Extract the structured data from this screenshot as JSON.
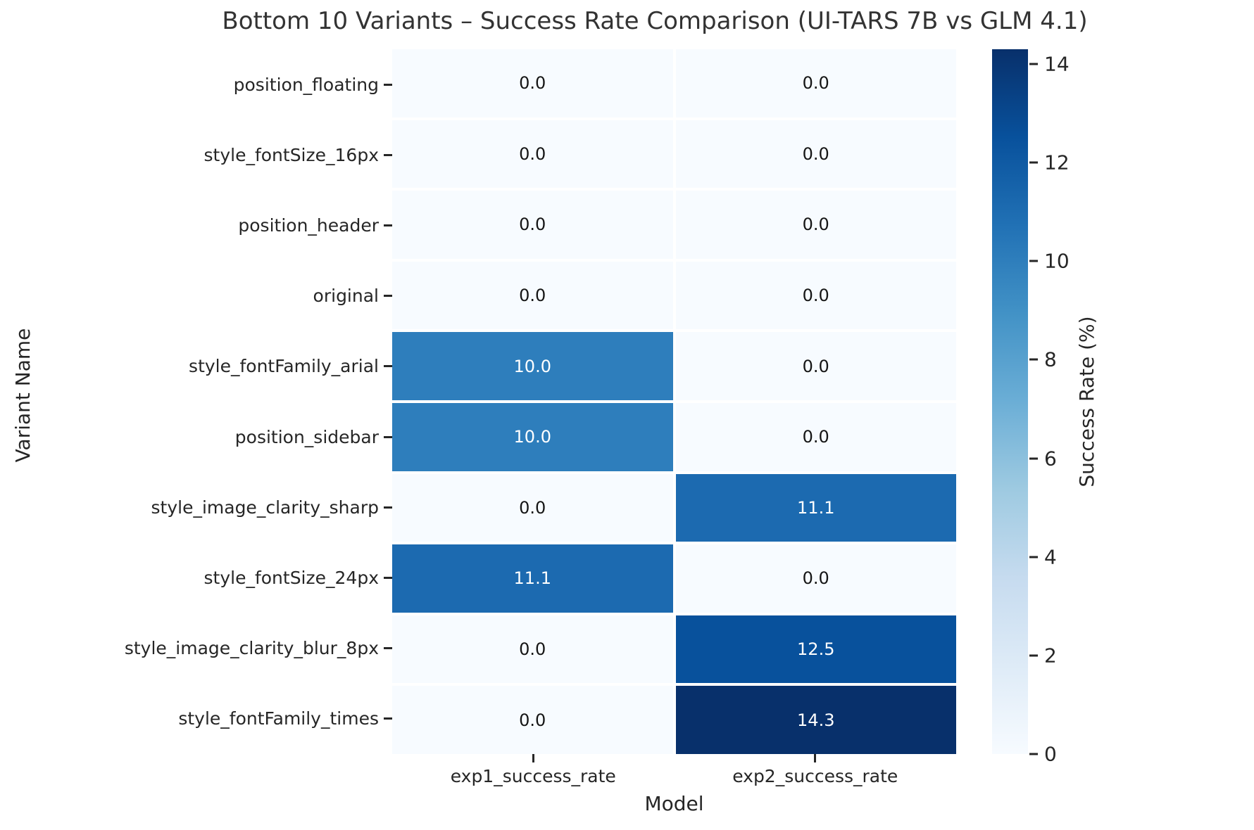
{
  "chart_data": {
    "type": "heatmap",
    "title": "Bottom 10 Variants – Success Rate Comparison (UI-TARS 7B vs GLM 4.1)",
    "xlabel": "Model",
    "ylabel": "Variant Name",
    "columns": [
      "exp1_success_rate",
      "exp2_success_rate"
    ],
    "rows": [
      "position_floating",
      "style_fontSize_16px",
      "position_header",
      "original",
      "style_fontFamily_arial",
      "position_sidebar",
      "style_image_clarity_sharp",
      "style_fontSize_24px",
      "style_image_clarity_blur_8px",
      "style_fontFamily_times"
    ],
    "values": [
      [
        0.0,
        0.0
      ],
      [
        0.0,
        0.0
      ],
      [
        0.0,
        0.0
      ],
      [
        0.0,
        0.0
      ],
      [
        10.0,
        0.0
      ],
      [
        10.0,
        0.0
      ],
      [
        0.0,
        11.1
      ],
      [
        11.1,
        0.0
      ],
      [
        0.0,
        12.5
      ],
      [
        0.0,
        14.3
      ]
    ],
    "annotation_decimals": 1,
    "legend_position": "right-colorbar",
    "grid": "white-cell-gaps",
    "colorbar": {
      "label": "Success Rate (%)",
      "min": 0,
      "max": 14.3,
      "ticks": [
        0,
        2,
        4,
        6,
        8,
        10,
        12,
        14
      ],
      "colormap": "Blues",
      "colormap_stops": [
        "#f7fbff",
        "#deebf7",
        "#c6dbef",
        "#9ecae1",
        "#6baed6",
        "#4292c6",
        "#2171b5",
        "#08519c",
        "#08306b"
      ]
    },
    "colors": {
      "background": "#ffffff",
      "title_color": "#333333",
      "tick_color": "#262626",
      "annotation_dark": "#151515",
      "annotation_light": "#ffffff"
    }
  }
}
